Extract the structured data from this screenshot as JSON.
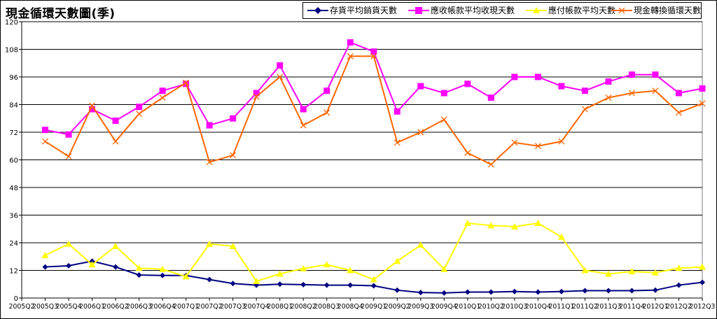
{
  "title": "現金循環天數圖(季)",
  "legend": [
    {
      "label": "存貨平均銷貨天數",
      "color": "#000080",
      "marker": "diamond"
    },
    {
      "label": "應收帳款平均收現天數",
      "color": "#ff00ff",
      "marker": "square"
    },
    {
      "label": "應付帳款平均天數",
      "color": "#ffff00",
      "marker": "triangle"
    },
    {
      "label": "現金轉換循環天數",
      "color": "#ff6600",
      "marker": "x"
    }
  ],
  "chart_data": {
    "type": "line",
    "title": "現金循環天數圖(季)",
    "ylim": [
      0,
      120
    ],
    "yticks": [
      0,
      12,
      24,
      36,
      48,
      60,
      72,
      84,
      96,
      108,
      120
    ],
    "grid": true,
    "legend_position": "top-right",
    "categories": [
      "2005Q2",
      "2005Q3",
      "2005Q4",
      "2006Q1",
      "2006Q2",
      "2006Q3",
      "2006Q4",
      "2007Q1",
      "2007Q2",
      "2007Q3",
      "2007Q4",
      "2008Q1",
      "2008Q2",
      "2008Q3",
      "2008Q4",
      "2009Q1",
      "2009Q2",
      "2009Q3",
      "2009Q4",
      "2010Q1",
      "2010Q2",
      "2010Q3",
      "2010Q4",
      "2011Q1",
      "2011Q2",
      "2011Q3",
      "2011Q4",
      "2012Q1",
      "2012Q2",
      "2012Q3"
    ],
    "series": [
      {
        "name": "存貨平均銷貨天數",
        "color": "#000080",
        "marker": "diamond",
        "values": [
          null,
          13.5,
          14,
          16,
          13.5,
          10,
          9.8,
          9.8,
          8,
          6.3,
          5.6,
          6,
          5.8,
          5.6,
          5.6,
          5.3,
          3.4,
          2.4,
          2.2,
          2.6,
          2.6,
          2.8,
          2.6,
          2.8,
          3.2,
          3.2,
          3.2,
          3.4,
          5.6,
          6.8
        ]
      },
      {
        "name": "應收帳款平均收現天數",
        "color": "#ff00ff",
        "marker": "square",
        "values": [
          null,
          73,
          71,
          82,
          77,
          83,
          90,
          93,
          75,
          78,
          89,
          101,
          82,
          90,
          111,
          107,
          81,
          92,
          89,
          93,
          87,
          96,
          96,
          92,
          90,
          94,
          97,
          97,
          89,
          91
        ]
      },
      {
        "name": "應付帳款平均天數",
        "color": "#ffff00",
        "marker": "triangle",
        "values": [
          null,
          18.5,
          23.5,
          14.5,
          22.5,
          13,
          12.5,
          9.3,
          23.5,
          22.5,
          7.3,
          10.5,
          12.8,
          14.5,
          12,
          8,
          16,
          23,
          12.5,
          32.5,
          31.5,
          31,
          32.5,
          26.5,
          12,
          10.5,
          11.5,
          11,
          13,
          13.5
        ]
      },
      {
        "name": "現金轉換循環天數",
        "color": "#ff6600",
        "marker": "x",
        "values": [
          null,
          68,
          61.5,
          83.5,
          68,
          80,
          87,
          93.5,
          59,
          62,
          87.5,
          96,
          75,
          80.5,
          105,
          105,
          67.5,
          72,
          77.5,
          63,
          58,
          67.5,
          66,
          68,
          82,
          87,
          89,
          90,
          80.5,
          84.5
        ]
      }
    ]
  }
}
